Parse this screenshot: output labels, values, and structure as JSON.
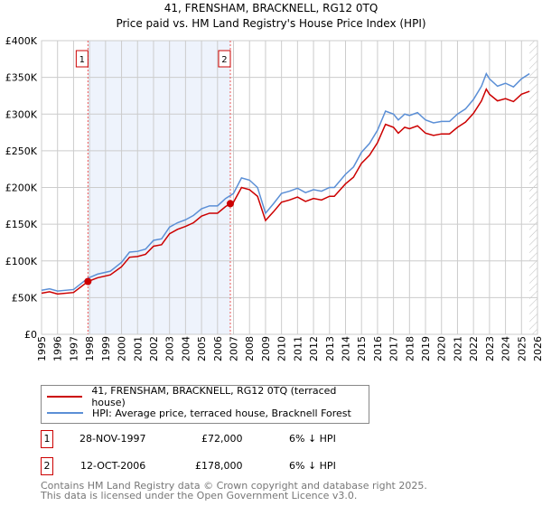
{
  "title": "41, FRENSHAM, BRACKNELL, RG12 0TQ",
  "subtitle": "Price paid vs. HM Land Registry's House Price Index (HPI)",
  "chart_data": {
    "type": "line",
    "title": "41, FRENSHAM, BRACKNELL, RG12 0TQ",
    "subtitle": "Price paid vs. HM Land Registry's House Price Index (HPI)",
    "xlim": [
      1995,
      2026
    ],
    "ylim": [
      0,
      400000
    ],
    "x_ticks": [
      "1995",
      "1996",
      "1997",
      "1998",
      "1999",
      "2000",
      "2001",
      "2002",
      "2003",
      "2004",
      "2005",
      "2006",
      "2007",
      "2008",
      "2009",
      "2010",
      "2011",
      "2012",
      "2013",
      "2014",
      "2015",
      "2016",
      "2017",
      "2018",
      "2019",
      "2020",
      "2021",
      "2022",
      "2023",
      "2024",
      "2025",
      "2026"
    ],
    "y_ticks": [
      {
        "v": 0,
        "label": "£0"
      },
      {
        "v": 50000,
        "label": "£50K"
      },
      {
        "v": 100000,
        "label": "£100K"
      },
      {
        "v": 150000,
        "label": "£150K"
      },
      {
        "v": 200000,
        "label": "£200K"
      },
      {
        "v": 250000,
        "label": "£250K"
      },
      {
        "v": 300000,
        "label": "£300K"
      },
      {
        "v": 350000,
        "label": "£350K"
      },
      {
        "v": 400000,
        "label": "£400K"
      }
    ],
    "grid": true,
    "x": [
      1995,
      1995.5,
      1996,
      1997,
      1997.9,
      1998.5,
      1999.3,
      2000,
      2000.5,
      2001,
      2001.5,
      2002,
      2002.5,
      2003,
      2003.5,
      2004,
      2004.5,
      2005,
      2005.5,
      2006,
      2006.5,
      2006.8,
      2007,
      2007.5,
      2008,
      2008.5,
      2009,
      2009.5,
      2010,
      2010.5,
      2011,
      2011.5,
      2012,
      2012.5,
      2013,
      2013.3,
      2014,
      2014.5,
      2015,
      2015.5,
      2016,
      2016.5,
      2017,
      2017.3,
      2017.7,
      2018,
      2018.5,
      2019,
      2019.5,
      2020,
      2020.5,
      2021,
      2021.5,
      2022,
      2022.5,
      2022.8,
      2023,
      2023.5,
      2024,
      2024.5,
      2025,
      2025.5
    ],
    "series": [
      {
        "name": "41, FRENSHAM, BRACKNELL, RG12 0TQ (terraced house)",
        "color": "#cc0000",
        "values": [
          56,
          58,
          55,
          57,
          72,
          77,
          81,
          92,
          105,
          106,
          109,
          120,
          122,
          137,
          143,
          147,
          152,
          161,
          165,
          165,
          174,
          178,
          180,
          200,
          197,
          188,
          155,
          167,
          180,
          183,
          187,
          181,
          185,
          183,
          188,
          188,
          205,
          214,
          233,
          244,
          261,
          286,
          282,
          274,
          282,
          280,
          284,
          274,
          271,
          273,
          273,
          282,
          289,
          301,
          318,
          334,
          327,
          318,
          321,
          317,
          327,
          331
        ]
      },
      {
        "name": "HPI: Average price, terraced house, Bracknell Forest",
        "color": "#5b8fd6",
        "values": [
          60,
          62,
          59,
          61,
          76.5,
          82,
          86,
          98,
          112,
          113,
          116,
          128,
          130,
          146,
          152,
          156,
          162,
          171,
          175,
          175,
          185,
          189,
          192,
          213,
          210,
          200,
          165,
          178,
          192,
          195,
          199,
          193,
          197,
          195,
          200,
          200,
          218,
          228,
          248,
          260,
          278,
          304,
          300,
          292,
          300,
          298,
          302,
          292,
          288,
          290,
          290,
          300,
          307,
          320,
          338,
          355,
          348,
          338,
          342,
          337,
          348,
          355
        ]
      }
    ],
    "value_unit": "£K",
    "shaded_region": [
      1997.9,
      2006.8
    ],
    "hatched_from": 2025.5,
    "annotations": [
      {
        "label": "1",
        "x": 1997.9,
        "y": 72
      },
      {
        "label": "2",
        "x": 2006.8,
        "y": 178
      }
    ]
  },
  "legend": {
    "items": [
      "41, FRENSHAM, BRACKNELL, RG12 0TQ (terraced house)",
      "HPI: Average price, terraced house, Bracknell Forest"
    ]
  },
  "transactions": [
    {
      "num": "1",
      "date": "28-NOV-1997",
      "price": "£72,000",
      "hpi": "6% ↓ HPI"
    },
    {
      "num": "2",
      "date": "12-OCT-2006",
      "price": "£178,000",
      "hpi": "6% ↓ HPI"
    }
  ],
  "footer": [
    "Contains HM Land Registry data © Crown copyright and database right 2025.",
    "This data is licensed under the Open Government Licence v3.0."
  ]
}
